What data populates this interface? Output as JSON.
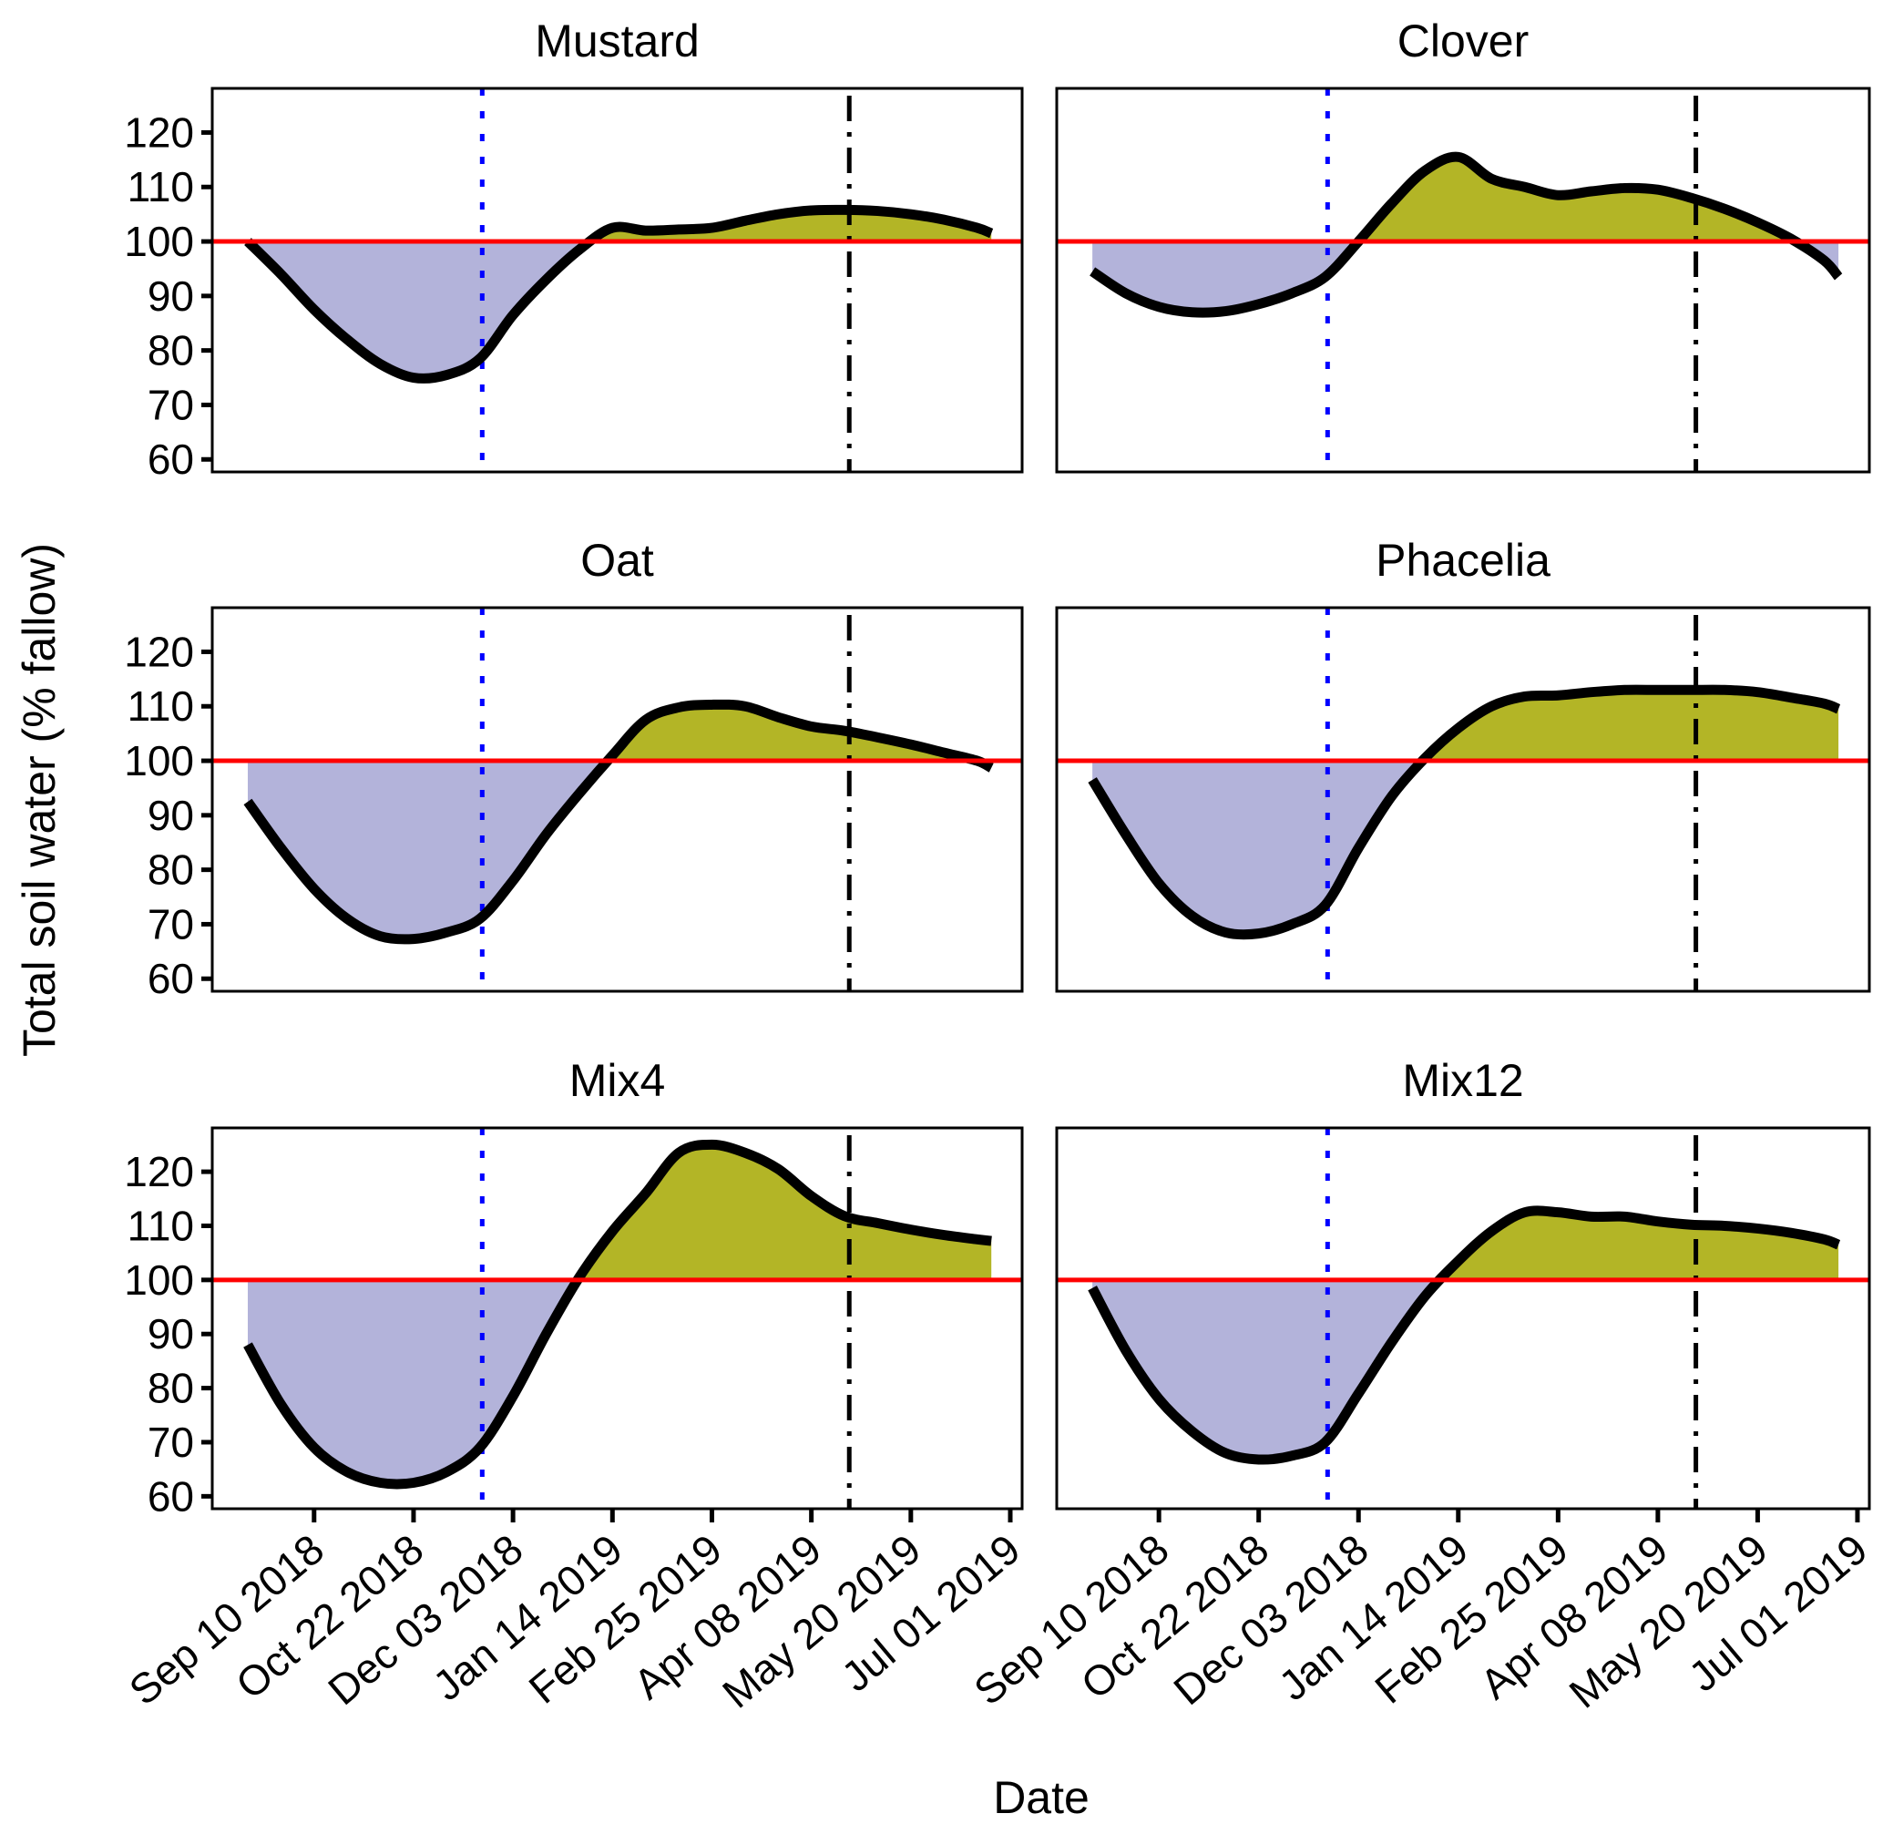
{
  "chart_data": {
    "type": "area",
    "layout": "facet-grid 3 rows x 2 columns",
    "xlabel": "Date",
    "ylabel": "Total soil water (% fallow)",
    "ylim": [
      57.7,
      128.1
    ],
    "yticks": [
      60,
      70,
      80,
      90,
      100,
      110,
      120
    ],
    "xlim": [
      "2018-07-29",
      "2019-07-06"
    ],
    "xticks": [
      "2018-09-10",
      "2018-10-22",
      "2018-12-03",
      "2019-01-14",
      "2019-02-25",
      "2019-04-08",
      "2019-05-20",
      "2019-07-01"
    ],
    "xtick_labels": [
      "Sep 10 2018",
      "Oct 22 2018",
      "Dec 03 2018",
      "Jan 14 2019",
      "Feb 25 2019",
      "Apr 08 2019",
      "May 20 2019",
      "Jul 01 2019"
    ],
    "reference_line": {
      "value": 100,
      "color": "#ff0000",
      "style": "solid"
    },
    "vertical_lines": [
      {
        "date": "2018-11-20",
        "color": "#0000ff",
        "style": "dotted"
      },
      {
        "date": "2019-04-24",
        "color": "#000000",
        "style": "dashdot"
      }
    ],
    "fill_below_color": "#b3b3da",
    "fill_above_color": "#b3b526",
    "line_color": "#000000",
    "series_x": [
      "2018-08-13",
      "2018-08-27",
      "2018-09-10",
      "2018-09-24",
      "2018-10-08",
      "2018-10-22",
      "2018-11-05",
      "2018-11-19",
      "2018-12-03",
      "2018-12-17",
      "2018-12-31",
      "2019-01-14",
      "2019-01-28",
      "2019-02-11",
      "2019-02-25",
      "2019-03-11",
      "2019-03-25",
      "2019-04-08",
      "2019-04-22",
      "2019-05-06",
      "2019-05-20",
      "2019-06-03",
      "2019-06-17",
      "2019-06-23"
    ],
    "panels": [
      {
        "title": "Mustard",
        "values": [
          100,
          94,
          87.5,
          82,
          77.5,
          75,
          75.5,
          78.5,
          86.5,
          93,
          98.5,
          102.5,
          102,
          102.2,
          102.5,
          103.8,
          105,
          105.7,
          105.8,
          105.6,
          105,
          104,
          102.5,
          101.5
        ]
      },
      {
        "title": "Clover",
        "values": [
          94.5,
          90.5,
          88,
          87,
          87.2,
          88.5,
          90.5,
          93.5,
          100,
          107,
          113,
          115.5,
          111.5,
          110,
          108.5,
          109.2,
          109.8,
          109.5,
          108,
          106,
          103.5,
          100.5,
          96.5,
          93.5
        ]
      },
      {
        "title": "Oat",
        "values": [
          92.5,
          84,
          76.5,
          71,
          67.8,
          67.3,
          68.5,
          71,
          78,
          86.5,
          94,
          101,
          107.5,
          109.8,
          110.3,
          110,
          108,
          106.3,
          105.5,
          104.3,
          103,
          101.5,
          100,
          98.7
        ]
      },
      {
        "title": "Phacelia",
        "values": [
          96.5,
          86.5,
          77.5,
          71.5,
          68.5,
          68.3,
          70,
          73.5,
          84,
          93.5,
          100.5,
          106,
          110,
          111.8,
          112,
          112.6,
          113,
          113,
          113,
          113,
          112.6,
          111.6,
          110.5,
          109.5
        ]
      },
      {
        "title": "Mix4",
        "values": [
          88,
          77,
          69,
          64.5,
          62.5,
          62.5,
          64.5,
          69,
          78.5,
          90,
          100.5,
          109,
          116,
          123.5,
          125,
          123.5,
          120.5,
          115.5,
          111.8,
          110.5,
          109.3,
          108.3,
          107.5,
          107.2
        ]
      },
      {
        "title": "Mix12",
        "values": [
          98.5,
          87,
          78,
          72,
          68,
          66.8,
          67.5,
          70,
          79,
          88.5,
          97,
          103.5,
          109,
          112.5,
          112.5,
          111.7,
          111.7,
          110.8,
          110.2,
          110,
          109.5,
          108.7,
          107.5,
          106.5
        ]
      }
    ]
  }
}
